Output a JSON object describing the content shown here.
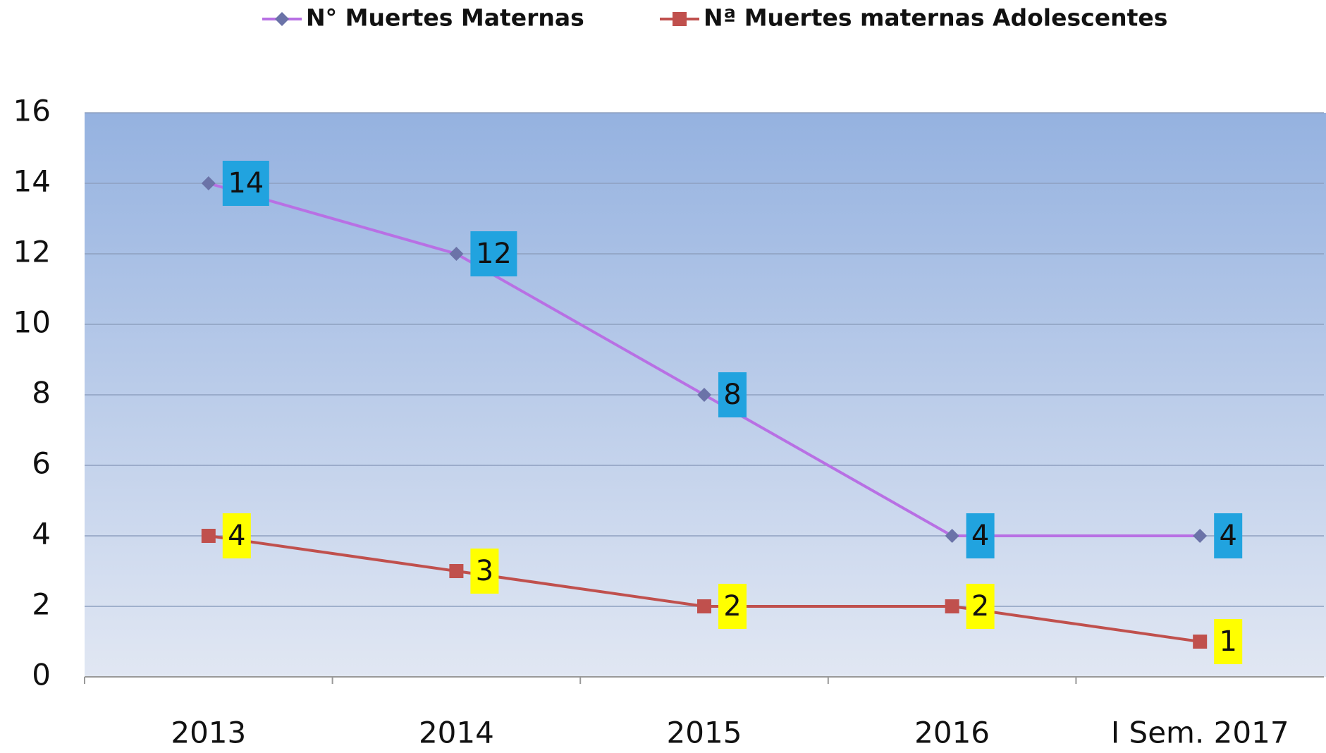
{
  "chart_data": {
    "type": "line",
    "categories": [
      "2013",
      "2014",
      "2015",
      "2016",
      "I Sem. 2017"
    ],
    "series": [
      {
        "name": "N° Muertes Maternas",
        "color": "#b870e4",
        "values": [
          14,
          12,
          8,
          4,
          4
        ]
      },
      {
        "name": "Nª Muertes maternas Adolescentes",
        "color": "#c0504d",
        "values": [
          4,
          3,
          2,
          2,
          1
        ]
      }
    ],
    "ylim": [
      0,
      16
    ],
    "yticks": [
      0,
      2,
      4,
      6,
      8,
      10,
      12,
      14,
      16
    ],
    "grid": true,
    "legend": "top"
  }
}
